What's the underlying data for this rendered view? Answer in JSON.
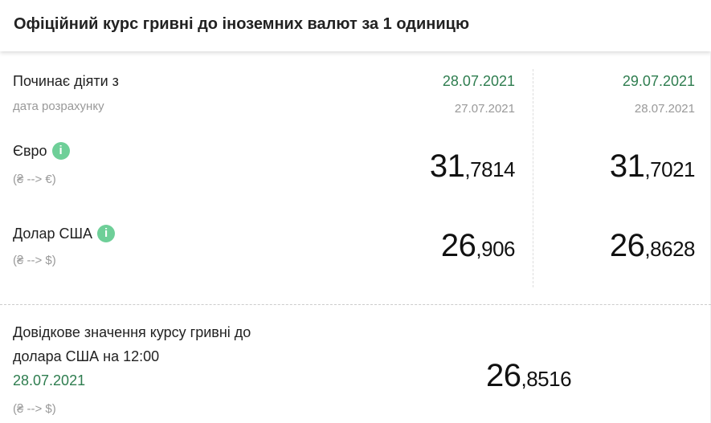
{
  "title": "Офіційний курс гривні до іноземних валют за 1 одиницю",
  "header_row": {
    "label": "Починає діяти з",
    "sub_label": "дата розрахунку",
    "columns": [
      {
        "effective": "28.07.2021",
        "calc": "27.07.2021"
      },
      {
        "effective": "29.07.2021",
        "calc": "28.07.2021"
      }
    ]
  },
  "currencies": [
    {
      "name": "Євро",
      "direction": "(₴ --> €)",
      "info_icon": "info-icon",
      "rates": [
        {
          "int": "31",
          "dec": ",7814"
        },
        {
          "int": "31",
          "dec": ",7021"
        }
      ]
    },
    {
      "name": "Долар США",
      "direction": "(₴ --> $)",
      "info_icon": "info-icon",
      "rates": [
        {
          "int": "26",
          "dec": ",906"
        },
        {
          "int": "26",
          "dec": ",8628"
        }
      ]
    }
  ],
  "reference": {
    "line1": "Довідкове значення курсу гривні до",
    "line2": "долара США на 12:00",
    "date": "28.07.2021",
    "direction": "(₴ --> $)",
    "int": "26",
    "dec": ",8516"
  },
  "colors": {
    "green": "#2e7d4f",
    "info": "#6ecf98"
  }
}
